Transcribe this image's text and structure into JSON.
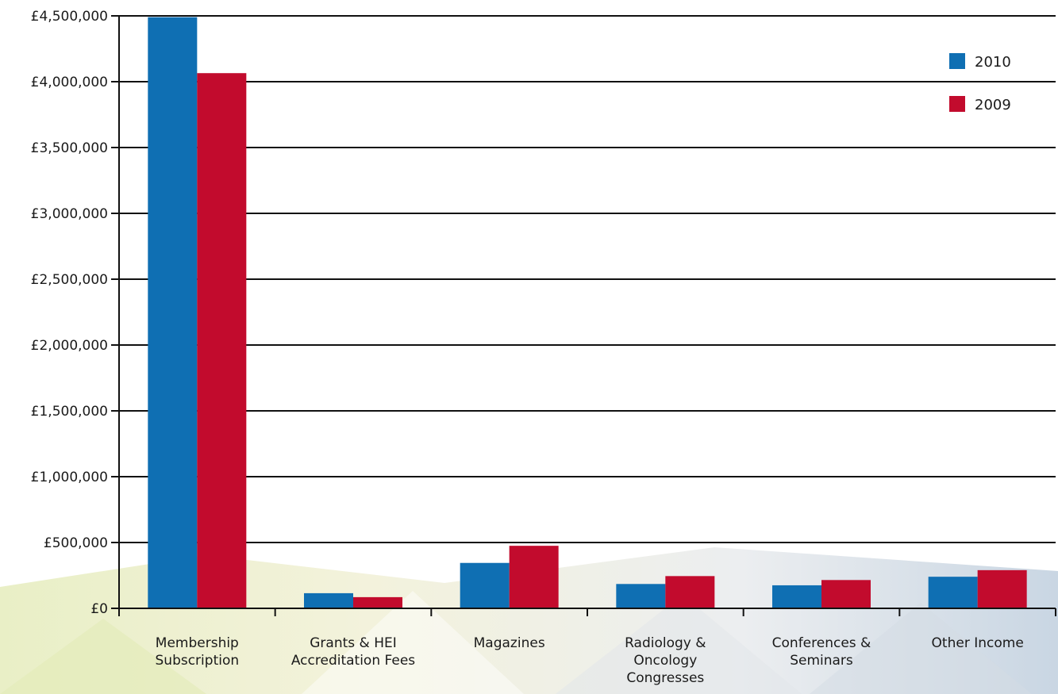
{
  "chart_data": {
    "type": "bar",
    "categories": [
      [
        "Membership",
        "Subscription"
      ],
      [
        "Grants & HEI",
        "Accreditation Fees"
      ],
      [
        "Magazines"
      ],
      [
        "Radiology &",
        "Oncology",
        "Congresses"
      ],
      [
        "Conferences &",
        "Seminars"
      ],
      [
        "Other Income"
      ]
    ],
    "series": [
      {
        "name": "2010",
        "color": "#0f6fb3",
        "values": [
          4490000,
          115000,
          345000,
          185000,
          175000,
          240000
        ]
      },
      {
        "name": "2009",
        "color": "#c20b2d",
        "values": [
          4065000,
          85000,
          475000,
          245000,
          215000,
          290000
        ]
      }
    ],
    "y_ticks": [
      {
        "value": 0,
        "label": "£0"
      },
      {
        "value": 500000,
        "label": "£500,000"
      },
      {
        "value": 1000000,
        "label": "£1,000,000"
      },
      {
        "value": 1500000,
        "label": "£1,500,000"
      },
      {
        "value": 2000000,
        "label": "£2,000,000"
      },
      {
        "value": 2500000,
        "label": "£2,500,000"
      },
      {
        "value": 3000000,
        "label": "£3,000,000"
      },
      {
        "value": 3500000,
        "label": "£3,500,000"
      },
      {
        "value": 4000000,
        "label": "£4,000,000"
      },
      {
        "value": 4500000,
        "label": "£4,500,000"
      }
    ],
    "ylim": [
      0,
      4500000
    ],
    "grid": true,
    "legend": "top-right",
    "title": "",
    "xlabel": "",
    "ylabel": ""
  }
}
